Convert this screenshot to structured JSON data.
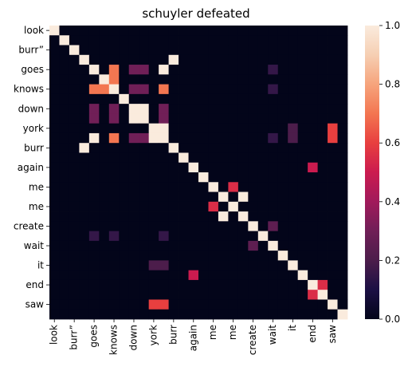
{
  "chart_data": {
    "type": "heatmap",
    "title": "schuyler defeated",
    "xlabel": "",
    "ylabel": "",
    "row_labels": [
      "look",
      "burr”",
      "goes",
      "knows",
      "down",
      "york",
      "burr",
      "again",
      "me",
      "me",
      "create",
      "wait",
      "it",
      "end",
      "saw"
    ],
    "col_labels": [
      "look",
      "burr”",
      "goes",
      "knows",
      "down",
      "york",
      "burr",
      "again",
      "me",
      "me",
      "create",
      "wait",
      "it",
      "end",
      "saw"
    ],
    "tokens": [
      "look",
      "",
      "burr”",
      "",
      "goes",
      "",
      "knows",
      "",
      "down",
      "",
      "york",
      "",
      "burr",
      "",
      "again",
      "",
      "me",
      "",
      "me",
      "",
      "create",
      "",
      "wait",
      "",
      "it",
      "",
      "end",
      "",
      "saw",
      ""
    ],
    "values": [
      [
        1,
        0,
        0,
        0,
        0,
        0,
        0,
        0,
        0,
        0,
        0,
        0,
        0,
        0,
        0,
        0,
        0,
        0,
        0,
        0,
        0,
        0,
        0,
        0,
        0,
        0,
        0,
        0,
        0,
        0
      ],
      [
        0,
        1,
        0,
        0,
        0,
        0,
        0,
        0,
        0,
        0,
        0,
        0,
        0,
        0,
        0,
        0,
        0,
        0,
        0,
        0,
        0,
        0,
        0,
        0,
        0,
        0,
        0,
        0,
        0,
        0
      ],
      [
        0,
        0,
        1,
        0,
        0,
        0,
        0,
        0,
        0,
        0,
        0,
        0,
        0,
        0,
        0,
        0,
        0,
        0,
        0,
        0,
        0,
        0,
        0,
        0,
        0,
        0,
        0,
        0,
        0,
        0
      ],
      [
        0,
        0,
        0,
        1,
        0,
        0,
        0,
        0,
        0,
        0,
        0,
        0,
        1,
        0,
        0,
        0,
        0,
        0,
        0,
        0,
        0,
        0,
        0,
        0,
        0,
        0,
        0,
        0,
        0,
        0
      ],
      [
        0,
        0,
        0,
        0,
        1,
        0,
        0.7,
        0,
        0.3,
        0.3,
        0,
        1,
        0,
        0,
        0,
        0,
        0,
        0,
        0,
        0,
        0,
        0,
        0.15,
        0,
        0,
        0,
        0,
        0,
        0,
        0
      ],
      [
        0,
        0,
        0,
        0,
        0,
        1,
        0.7,
        0,
        0,
        0,
        0,
        0,
        0,
        0,
        0,
        0,
        0,
        0,
        0,
        0,
        0,
        0,
        0,
        0,
        0,
        0,
        0,
        0,
        0,
        0
      ],
      [
        0,
        0,
        0,
        0,
        0.7,
        0.7,
        1,
        0,
        0.3,
        0.3,
        0,
        0.7,
        0,
        0,
        0,
        0,
        0,
        0,
        0,
        0,
        0,
        0,
        0.15,
        0,
        0,
        0,
        0,
        0,
        0,
        0
      ],
      [
        0,
        0,
        0,
        0,
        0,
        0,
        0,
        1,
        0,
        0,
        0,
        0,
        0,
        0,
        0,
        0,
        0,
        0,
        0,
        0,
        0,
        0,
        0,
        0,
        0,
        0,
        0,
        0,
        0,
        0
      ],
      [
        0,
        0,
        0,
        0,
        0.3,
        0,
        0.3,
        0,
        1,
        1,
        0,
        0.3,
        0,
        0,
        0,
        0,
        0,
        0,
        0,
        0,
        0,
        0,
        0,
        0,
        0,
        0,
        0,
        0,
        0,
        0
      ],
      [
        0,
        0,
        0,
        0,
        0.3,
        0,
        0.3,
        0,
        1,
        1,
        0,
        0.3,
        0,
        0,
        0,
        0,
        0,
        0,
        0,
        0,
        0,
        0,
        0,
        0,
        0,
        0,
        0,
        0,
        0,
        0
      ],
      [
        0,
        0,
        0,
        0,
        0,
        0,
        0,
        0,
        0,
        0,
        1,
        1,
        0,
        0,
        0,
        0,
        0,
        0,
        0,
        0,
        0,
        0,
        0,
        0,
        0.2,
        0,
        0,
        0,
        0.6,
        0
      ],
      [
        0,
        0,
        0,
        0,
        1,
        0,
        0.7,
        0,
        0.3,
        0.3,
        1,
        1,
        0,
        0,
        0,
        0,
        0,
        0,
        0,
        0,
        0,
        0,
        0.15,
        0,
        0.2,
        0,
        0,
        0,
        0.6,
        0
      ],
      [
        0,
        0,
        0,
        1,
        0,
        0,
        0,
        0,
        0,
        0,
        0,
        0,
        1,
        0,
        0,
        0,
        0,
        0,
        0,
        0,
        0,
        0,
        0,
        0,
        0,
        0,
        0,
        0,
        0,
        0
      ],
      [
        0,
        0,
        0,
        0,
        0,
        0,
        0,
        0,
        0,
        0,
        0,
        0,
        0,
        1,
        0,
        0,
        0,
        0,
        0,
        0,
        0,
        0,
        0,
        0,
        0,
        0,
        0,
        0,
        0,
        0
      ],
      [
        0,
        0,
        0,
        0,
        0,
        0,
        0,
        0,
        0,
        0,
        0,
        0,
        0,
        0,
        1,
        0,
        0,
        0,
        0,
        0,
        0,
        0,
        0,
        0,
        0,
        0,
        0.5,
        0,
        0,
        0
      ],
      [
        0,
        0,
        0,
        0,
        0,
        0,
        0,
        0,
        0,
        0,
        0,
        0,
        0,
        0,
        0,
        1,
        0,
        0,
        0,
        0,
        0,
        0,
        0,
        0,
        0,
        0,
        0,
        0,
        0,
        0
      ],
      [
        0,
        0,
        0,
        0,
        0,
        0,
        0,
        0,
        0,
        0,
        0,
        0,
        0,
        0,
        0,
        0,
        1,
        0,
        0.55,
        0,
        0,
        0,
        0,
        0,
        0,
        0,
        0,
        0,
        0,
        0
      ],
      [
        0,
        0,
        0,
        0,
        0,
        0,
        0,
        0,
        0,
        0,
        0,
        0,
        0,
        0,
        0,
        0,
        0,
        1,
        0,
        1,
        0,
        0,
        0,
        0,
        0,
        0,
        0,
        0,
        0,
        0
      ],
      [
        0,
        0,
        0,
        0,
        0,
        0,
        0,
        0,
        0,
        0,
        0,
        0,
        0,
        0,
        0,
        0,
        0.55,
        0,
        1,
        0,
        0,
        0,
        0,
        0,
        0,
        0,
        0,
        0,
        0,
        0
      ],
      [
        0,
        0,
        0,
        0,
        0,
        0,
        0,
        0,
        0,
        0,
        0,
        0,
        0,
        0,
        0,
        0,
        0,
        1,
        0,
        1,
        0,
        0,
        0,
        0,
        0,
        0,
        0,
        0,
        0,
        0
      ],
      [
        0,
        0,
        0,
        0,
        0,
        0,
        0,
        0,
        0,
        0,
        0,
        0,
        0,
        0,
        0,
        0,
        0,
        0,
        0,
        0,
        1,
        0,
        0.25,
        0,
        0,
        0,
        0,
        0,
        0,
        0
      ],
      [
        0,
        0,
        0,
        0,
        0.15,
        0,
        0.15,
        0,
        0,
        0,
        0,
        0.15,
        0,
        0,
        0,
        0,
        0,
        0,
        0,
        0,
        0,
        1,
        0,
        0,
        0,
        0,
        0,
        0,
        0,
        0
      ],
      [
        0,
        0,
        0,
        0,
        0,
        0,
        0,
        0,
        0,
        0,
        0,
        0,
        0,
        0,
        0,
        0,
        0,
        0,
        0,
        0,
        0.25,
        0,
        1,
        0,
        0,
        0,
        0,
        0,
        0,
        0
      ],
      [
        0,
        0,
        0,
        0,
        0,
        0,
        0,
        0,
        0,
        0,
        0,
        0,
        0,
        0,
        0,
        0,
        0,
        0,
        0,
        0,
        0,
        0,
        0,
        1,
        0,
        0,
        0,
        0,
        0,
        0
      ],
      [
        0,
        0,
        0,
        0,
        0,
        0,
        0,
        0,
        0,
        0,
        0.2,
        0.2,
        0,
        0,
        0,
        0,
        0,
        0,
        0,
        0,
        0,
        0,
        0,
        0,
        1,
        0,
        0,
        0,
        0,
        0
      ],
      [
        0,
        0,
        0,
        0,
        0,
        0,
        0,
        0,
        0,
        0,
        0,
        0,
        0,
        0,
        0.5,
        0,
        0,
        0,
        0,
        0,
        0,
        0,
        0,
        0,
        0,
        1,
        0,
        0,
        0,
        0
      ],
      [
        0,
        0,
        0,
        0,
        0,
        0,
        0,
        0,
        0,
        0,
        0,
        0,
        0,
        0,
        0,
        0,
        0,
        0,
        0,
        0,
        0,
        0,
        0,
        0,
        0,
        0,
        1,
        0.55,
        0,
        0
      ],
      [
        0,
        0,
        0,
        0,
        0,
        0,
        0,
        0,
        0,
        0,
        0,
        0,
        0,
        0,
        0,
        0,
        0,
        0,
        0,
        0,
        0,
        0,
        0,
        0,
        0,
        0,
        0.55,
        1,
        0,
        0
      ],
      [
        0,
        0,
        0,
        0,
        0,
        0,
        0,
        0,
        0,
        0,
        0.6,
        0.6,
        0,
        0,
        0,
        0,
        0,
        0,
        0,
        0,
        0,
        0,
        0,
        0,
        0,
        0,
        0,
        0,
        1,
        0
      ],
      [
        0,
        0,
        0,
        0,
        0,
        0,
        0,
        0,
        0,
        0,
        0,
        0,
        0,
        0,
        0,
        0,
        0,
        0,
        0,
        0,
        0,
        0,
        0,
        0,
        0,
        0,
        0,
        0,
        0,
        1
      ]
    ],
    "zlim": [
      0,
      1
    ],
    "colorbar_ticks": [
      0.0,
      0.2,
      0.4,
      0.6,
      0.8,
      1.0
    ],
    "colorbar_tick_labels": [
      "0.0",
      "0.2",
      "0.4",
      "0.6",
      "0.8",
      "1.0"
    ],
    "colormap": "rocket",
    "grid": false,
    "legend": "colorbar-right"
  }
}
